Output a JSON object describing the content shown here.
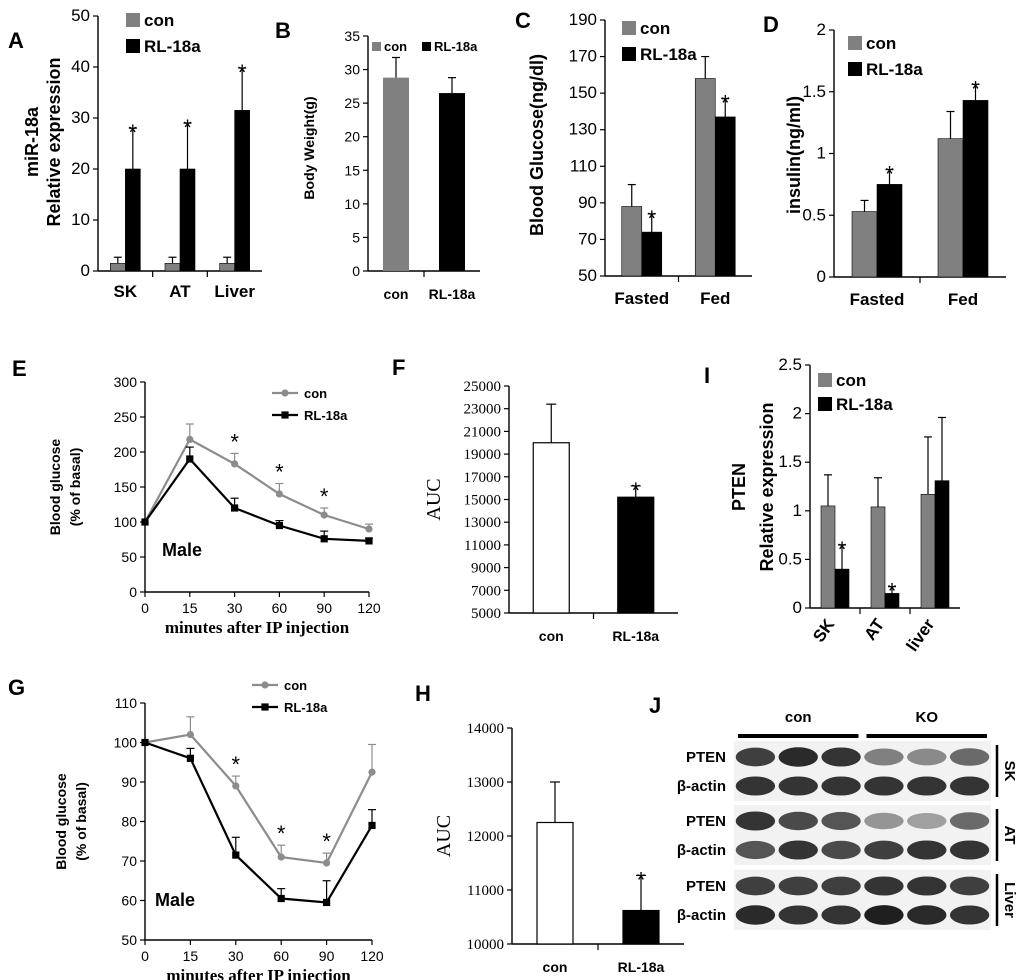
{
  "colors": {
    "con_bar": "#808080",
    "rl_bar": "#000000",
    "open_bar": "#ffffff",
    "con_line": "#8c8c8c",
    "rl_line": "#000000",
    "axis": "#000000"
  },
  "chart_data": [
    {
      "id": "A",
      "panel_label": "A",
      "type": "bar",
      "ylabel_top": "miR-18a",
      "ylabel": "Relative expression",
      "categories": [
        "SK",
        "AT",
        "Liver"
      ],
      "ylim": [
        0,
        50
      ],
      "yticks": [
        0,
        10,
        20,
        30,
        40,
        50
      ],
      "series": [
        {
          "name": "con",
          "values": [
            1.5,
            1.5,
            1.5
          ],
          "errors": [
            1.2,
            1.2,
            1.2
          ]
        },
        {
          "name": "RL-18a",
          "values": [
            20,
            20,
            31.5
          ],
          "errors": [
            8,
            9,
            8.3
          ]
        }
      ],
      "stars": [
        "*",
        "*",
        "*"
      ]
    },
    {
      "id": "B",
      "panel_label": "B",
      "type": "bar",
      "ylabel": "Body Weight(g)",
      "categories": [
        "con",
        "RL-18a"
      ],
      "ylim": [
        0,
        35
      ],
      "yticks": [
        0,
        5,
        10,
        15,
        20,
        25,
        30,
        35
      ],
      "legend": [
        "con",
        "RL-18a"
      ],
      "values": [
        28.8,
        26.5
      ],
      "errors": [
        3,
        2.3
      ]
    },
    {
      "id": "C",
      "panel_label": "C",
      "type": "bar",
      "ylabel": "Blood Glucose(ng/dl)",
      "categories": [
        "Fasted",
        "Fed"
      ],
      "ylim": [
        50,
        190
      ],
      "yticks": [
        50,
        70,
        90,
        110,
        130,
        150,
        170,
        190
      ],
      "series": [
        {
          "name": "con",
          "values": [
            88,
            158
          ],
          "errors": [
            12,
            12
          ]
        },
        {
          "name": "RL-18a",
          "values": [
            74,
            137
          ],
          "errors": [
            10,
            10
          ]
        }
      ],
      "stars": [
        "*",
        "*"
      ]
    },
    {
      "id": "D",
      "panel_label": "D",
      "type": "bar",
      "ylabel": "insulin(ng/ml)",
      "categories": [
        "Fasted",
        "Fed"
      ],
      "ylim": [
        0,
        2
      ],
      "yticks": [
        "0",
        "0.5",
        "1",
        "1.5",
        "2"
      ],
      "series": [
        {
          "name": "con",
          "values": [
            0.53,
            1.12
          ],
          "errors": [
            0.09,
            0.22
          ]
        },
        {
          "name": "RL-18a",
          "values": [
            0.75,
            1.43
          ],
          "errors": [
            0.12,
            0.13
          ]
        }
      ],
      "stars": [
        "*",
        "*"
      ]
    },
    {
      "id": "E",
      "panel_label": "E",
      "type": "line",
      "ylabel": "Blood glucose",
      "ylabel2": "(% of basal)",
      "xlabel": "minutes after IP injection",
      "note": "Male",
      "x": [
        0,
        15,
        30,
        60,
        90,
        120
      ],
      "ylim": [
        0,
        300
      ],
      "yticks": [
        0,
        50,
        100,
        150,
        200,
        250,
        300
      ],
      "series": [
        {
          "name": "con",
          "values": [
            100,
            218,
            183,
            140,
            110,
            90
          ],
          "errors": [
            0,
            22,
            15,
            15,
            10,
            7
          ]
        },
        {
          "name": "RL-18a",
          "values": [
            100,
            190,
            120,
            95,
            76,
            73
          ],
          "errors": [
            0,
            17,
            14,
            7,
            11,
            4
          ]
        }
      ],
      "stars": [
        "",
        "",
        "*",
        "*",
        "*",
        ""
      ]
    },
    {
      "id": "F",
      "panel_label": "F",
      "type": "bar",
      "ylabel": "AUC",
      "categories": [
        "con",
        "RL-18a"
      ],
      "ylim": [
        5000,
        25000
      ],
      "yticks": [
        5000,
        7000,
        9000,
        11000,
        13000,
        15000,
        17000,
        19000,
        21000,
        23000,
        25000
      ],
      "values": [
        20000,
        15200
      ],
      "errors": [
        3400,
        1000
      ],
      "stars": [
        "",
        "*"
      ]
    },
    {
      "id": "I",
      "panel_label": "I",
      "type": "bar",
      "ylabel": "PTEN",
      "ylabel2": "Relative expression",
      "categories": [
        "SK",
        "AT",
        "liver"
      ],
      "ylim": [
        0,
        2.5
      ],
      "yticks": [
        "0",
        "0.5",
        "1",
        "1.5",
        "2",
        "2.5"
      ],
      "series": [
        {
          "name": "con",
          "values": [
            1.05,
            1.04,
            1.17
          ],
          "errors": [
            0.32,
            0.3,
            0.59
          ]
        },
        {
          "name": "RL-18a",
          "values": [
            0.4,
            0.15,
            1.31
          ],
          "errors": [
            0.25,
            0.07,
            0.65
          ]
        }
      ],
      "stars": [
        "*",
        "*",
        ""
      ]
    },
    {
      "id": "G",
      "panel_label": "G",
      "type": "line",
      "ylabel": "Blood glucose",
      "ylabel2": "(% of basal)",
      "xlabel": "minutes after IP injection",
      "note": "Male",
      "x": [
        0,
        15,
        30,
        60,
        90,
        120
      ],
      "ylim": [
        50,
        110
      ],
      "yticks": [
        50,
        60,
        70,
        80,
        90,
        100,
        110
      ],
      "series": [
        {
          "name": "con",
          "values": [
            100,
            102,
            89,
            71,
            69.5,
            92.5
          ],
          "errors": [
            0,
            4.5,
            2.5,
            3,
            2.5,
            7
          ]
        },
        {
          "name": "RL-18a",
          "values": [
            100,
            96,
            71.5,
            60.5,
            59.5,
            79
          ],
          "errors": [
            0,
            2.5,
            4.5,
            2.5,
            5.5,
            4
          ]
        }
      ],
      "stars": [
        "",
        "",
        "*",
        "*",
        "*",
        ""
      ]
    },
    {
      "id": "H",
      "panel_label": "H",
      "type": "bar",
      "ylabel": "AUC",
      "categories": [
        "con",
        "RL-18a"
      ],
      "ylim": [
        10000,
        14000
      ],
      "yticks": [
        10000,
        11000,
        12000,
        13000,
        14000
      ],
      "values": [
        12250,
        10620
      ],
      "errors": [
        750,
        650
      ],
      "stars": [
        "",
        "*"
      ]
    }
  ],
  "blot": {
    "panel_label": "J",
    "groups": [
      "con",
      "KO"
    ],
    "tissues": [
      {
        "name": "SK",
        "rows": [
          {
            "label": "PTEN",
            "intensity": [
              0.8,
              0.9,
              0.85,
              0.5,
              0.45,
              0.6
            ]
          },
          {
            "label": "β-actin",
            "intensity": [
              0.85,
              0.85,
              0.85,
              0.85,
              0.85,
              0.85
            ]
          }
        ]
      },
      {
        "name": "AT",
        "rows": [
          {
            "label": "PTEN",
            "intensity": [
              0.85,
              0.75,
              0.7,
              0.4,
              0.35,
              0.6
            ]
          },
          {
            "label": "β-actin",
            "intensity": [
              0.7,
              0.85,
              0.75,
              0.8,
              0.85,
              0.85
            ]
          }
        ]
      },
      {
        "name": "Liver",
        "rows": [
          {
            "label": "PTEN",
            "intensity": [
              0.8,
              0.8,
              0.8,
              0.85,
              0.85,
              0.8
            ]
          },
          {
            "label": "β-actin",
            "intensity": [
              0.9,
              0.85,
              0.85,
              0.95,
              0.9,
              0.85
            ]
          }
        ]
      }
    ]
  }
}
